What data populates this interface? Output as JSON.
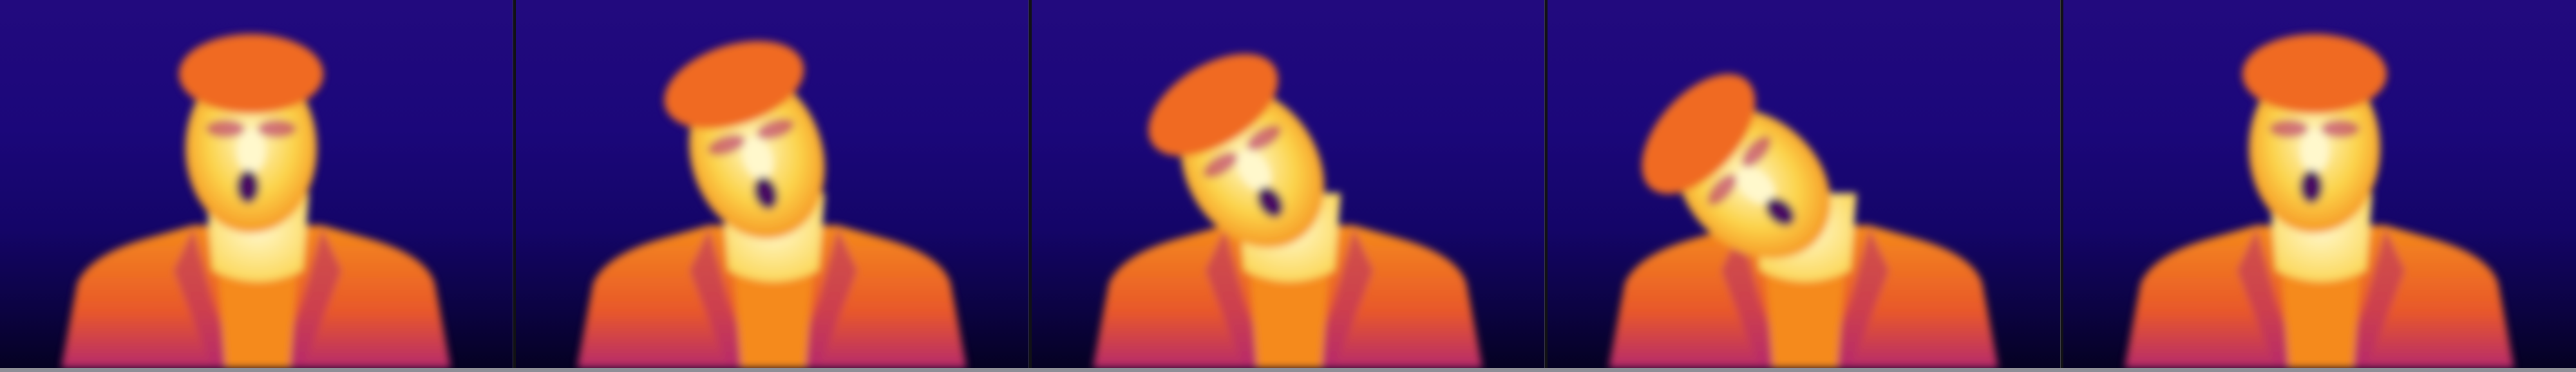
{
  "image": {
    "description_tag": "thermal-camera-frame-sequence",
    "frame_count": 5,
    "palette": {
      "background_top": "#220a7e",
      "background_bottom": "#050122",
      "suit_dark": "#b62a6c",
      "suit_mid": "#e8582a",
      "suit_light": "#f58a1c",
      "skin_warm": "#fbd34a",
      "skin_hot": "#fff8cc",
      "hair": "#f06a24",
      "cold_spot": "#4a0f62"
    },
    "frames": [
      {
        "pose": "upright",
        "head_tilt_deg": 0
      },
      {
        "pose": "slight-tilt",
        "head_tilt_deg": 18
      },
      {
        "pose": "tilt",
        "head_tilt_deg": 32
      },
      {
        "pose": "head-down",
        "head_tilt_deg": 48
      },
      {
        "pose": "upright",
        "head_tilt_deg": 0
      }
    ]
  }
}
